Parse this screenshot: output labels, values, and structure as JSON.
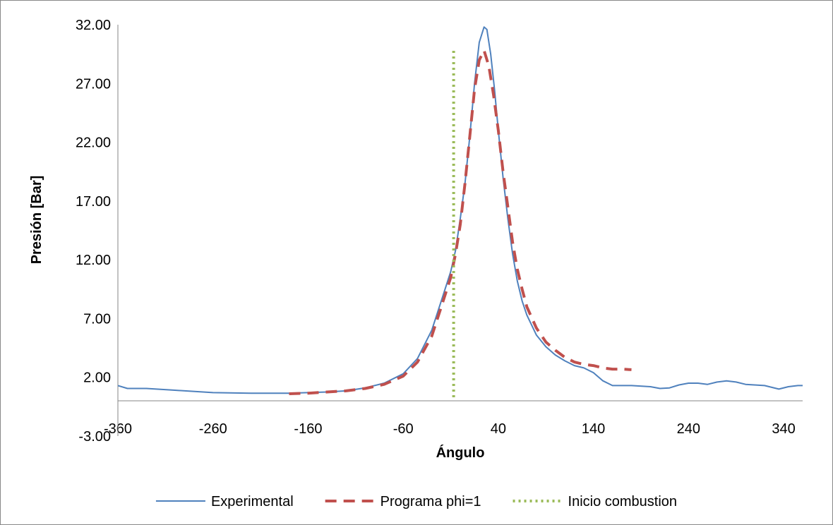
{
  "chart_data": {
    "type": "line",
    "title": "",
    "xlabel": "Ángulo",
    "ylabel": "Presión [Bar]",
    "xlim": [
      -360,
      360
    ],
    "ylim": [
      -3,
      32
    ],
    "x_ticks": [
      -360,
      -260,
      -160,
      -60,
      40,
      140,
      240,
      340
    ],
    "x_tick_labels": [
      "-360",
      "-260",
      "-160",
      "-60",
      "40",
      "140",
      "240",
      "340"
    ],
    "y_ticks": [
      -3,
      2,
      7,
      12,
      17,
      22,
      27,
      32
    ],
    "y_tick_labels": [
      "-3.00",
      "2.00",
      "7.00",
      "12.00",
      "17.00",
      "22.00",
      "27.00",
      "32.00"
    ],
    "grid": false,
    "legend_position": "bottom",
    "series": [
      {
        "name": "Experimental",
        "color": "#4F81BD",
        "style": "solid",
        "points": [
          [
            -360,
            1.3
          ],
          [
            -350,
            1.05
          ],
          [
            -330,
            1.05
          ],
          [
            -300,
            0.9
          ],
          [
            -260,
            0.7
          ],
          [
            -220,
            0.65
          ],
          [
            -180,
            0.65
          ],
          [
            -160,
            0.7
          ],
          [
            -140,
            0.75
          ],
          [
            -120,
            0.85
          ],
          [
            -100,
            1.1
          ],
          [
            -80,
            1.5
          ],
          [
            -60,
            2.3
          ],
          [
            -45,
            3.6
          ],
          [
            -30,
            6.0
          ],
          [
            -20,
            8.5
          ],
          [
            -10,
            11.0
          ],
          [
            -5,
            12.8
          ],
          [
            0,
            15.5
          ],
          [
            5,
            18.5
          ],
          [
            10,
            22.5
          ],
          [
            15,
            27.0
          ],
          [
            20,
            30.5
          ],
          [
            25,
            31.8
          ],
          [
            28,
            31.6
          ],
          [
            32,
            29.5
          ],
          [
            36,
            26.5
          ],
          [
            40,
            23.0
          ],
          [
            45,
            19.0
          ],
          [
            50,
            15.5
          ],
          [
            55,
            12.5
          ],
          [
            60,
            10.2
          ],
          [
            65,
            8.5
          ],
          [
            70,
            7.3
          ],
          [
            80,
            5.6
          ],
          [
            90,
            4.6
          ],
          [
            100,
            3.9
          ],
          [
            110,
            3.4
          ],
          [
            120,
            3.0
          ],
          [
            130,
            2.8
          ],
          [
            140,
            2.4
          ],
          [
            150,
            1.7
          ],
          [
            160,
            1.3
          ],
          [
            180,
            1.3
          ],
          [
            200,
            1.2
          ],
          [
            210,
            1.05
          ],
          [
            220,
            1.1
          ],
          [
            230,
            1.35
          ],
          [
            240,
            1.5
          ],
          [
            250,
            1.5
          ],
          [
            260,
            1.4
          ],
          [
            270,
            1.6
          ],
          [
            280,
            1.7
          ],
          [
            290,
            1.6
          ],
          [
            300,
            1.4
          ],
          [
            320,
            1.3
          ],
          [
            335,
            1.0
          ],
          [
            345,
            1.2
          ],
          [
            355,
            1.3
          ],
          [
            360,
            1.3
          ]
        ]
      },
      {
        "name": "Programa phi=1",
        "color": "#C0504D",
        "style": "dashed",
        "points": [
          [
            -180,
            0.6
          ],
          [
            -160,
            0.65
          ],
          [
            -140,
            0.75
          ],
          [
            -120,
            0.85
          ],
          [
            -100,
            1.05
          ],
          [
            -80,
            1.4
          ],
          [
            -60,
            2.1
          ],
          [
            -45,
            3.3
          ],
          [
            -30,
            5.5
          ],
          [
            -20,
            8.0
          ],
          [
            -10,
            10.5
          ],
          [
            -5,
            12.5
          ],
          [
            0,
            15.0
          ],
          [
            5,
            18.5
          ],
          [
            10,
            22.5
          ],
          [
            15,
            26.5
          ],
          [
            20,
            29.0
          ],
          [
            25,
            29.8
          ],
          [
            30,
            28.5
          ],
          [
            35,
            26.0
          ],
          [
            40,
            23.0
          ],
          [
            45,
            19.5
          ],
          [
            50,
            16.5
          ],
          [
            55,
            13.5
          ],
          [
            60,
            11.2
          ],
          [
            65,
            9.5
          ],
          [
            70,
            8.0
          ],
          [
            80,
            6.2
          ],
          [
            90,
            5.0
          ],
          [
            100,
            4.3
          ],
          [
            110,
            3.7
          ],
          [
            120,
            3.3
          ],
          [
            130,
            3.1
          ],
          [
            140,
            3.0
          ],
          [
            150,
            2.8
          ],
          [
            160,
            2.7
          ],
          [
            170,
            2.7
          ],
          [
            180,
            2.65
          ]
        ]
      },
      {
        "name": "Inicio combustion",
        "color": "#9BBB59",
        "style": "dotted",
        "points": [
          [
            -7,
            0.3
          ],
          [
            -7,
            29.9
          ]
        ]
      }
    ]
  }
}
